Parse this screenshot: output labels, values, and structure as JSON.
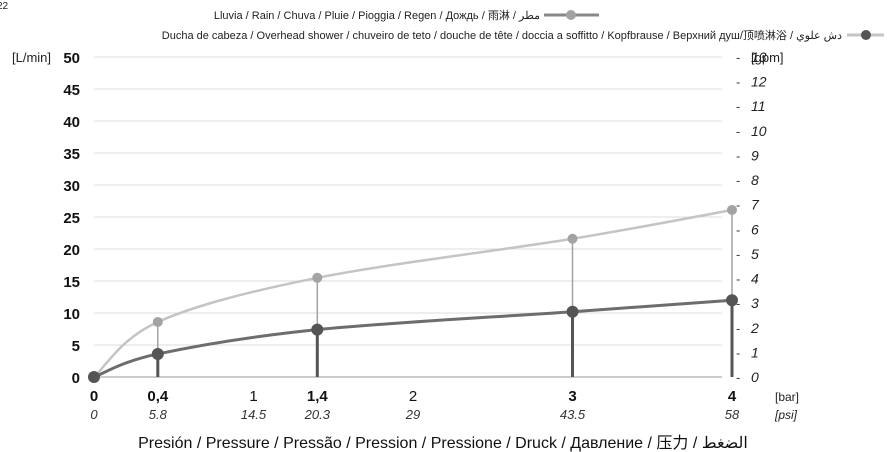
{
  "chart_data": {
    "type": "line",
    "top_mark": "22",
    "legend": [
      {
        "label": "Lluvia / Rain / Chuva / Pluie / Pioggia / Regen / Дождь / 雨淋 / مطر",
        "color": "#888888"
      },
      {
        "label": "Ducha de cabeza / Overhead shower / chuveiro de teto / douche de tête / doccia a soffitto / Kopfbrause / Верхний душ/顶喷淋浴 / دش علوي",
        "color": "#c4c4c4"
      }
    ],
    "legend_placement": "top",
    "ylabel_left": "[L/min]",
    "ylabel_right": "[gpm]",
    "ylim": [
      0,
      50
    ],
    "yticks": [
      0,
      5,
      10,
      15,
      20,
      25,
      30,
      35,
      40,
      45,
      50
    ],
    "ylim_right": [
      0,
      13
    ],
    "yticks_right": [
      0,
      1,
      2,
      3,
      4,
      5,
      6,
      7,
      8,
      9,
      10,
      11,
      12,
      13
    ],
    "xlim": [
      0,
      4
    ],
    "xticks": [
      {
        "value": 0,
        "bar": "0",
        "psi": "0",
        "bold": true
      },
      {
        "value": 0.4,
        "bar": "0,4",
        "psi": "5.8",
        "bold": true
      },
      {
        "value": 1,
        "bar": "1",
        "psi": "14.5",
        "bold": false
      },
      {
        "value": 1.4,
        "bar": "1,4",
        "psi": "20.3",
        "bold": true
      },
      {
        "value": 2,
        "bar": "2",
        "psi": "29",
        "bold": false
      },
      {
        "value": 3,
        "bar": "3",
        "psi": "43.5",
        "bold": true
      },
      {
        "value": 4,
        "bar": "4",
        "psi": "58",
        "bold": true
      }
    ],
    "xunit_bar": "[bar]",
    "xunit_psi": "[psi]",
    "xlabel": "Presión / Pressure / Pressão / Pression / Pressione / Druck / Давление / 压力 / الضغط",
    "grid": "horizontal",
    "series": [
      {
        "color": "#c4c4c4",
        "dot_color": "#a3a3a3",
        "points": [
          [
            0,
            0
          ],
          [
            0.4,
            8.6
          ],
          [
            1.4,
            15.5
          ],
          [
            3,
            21.6
          ],
          [
            4,
            26.1
          ]
        ]
      },
      {
        "color": "#6d6d6d",
        "dot_color": "#555555",
        "points": [
          [
            0,
            0
          ],
          [
            0.4,
            3.6
          ],
          [
            1.4,
            7.4
          ],
          [
            3,
            10.2
          ],
          [
            4,
            12.0
          ]
        ]
      }
    ]
  }
}
